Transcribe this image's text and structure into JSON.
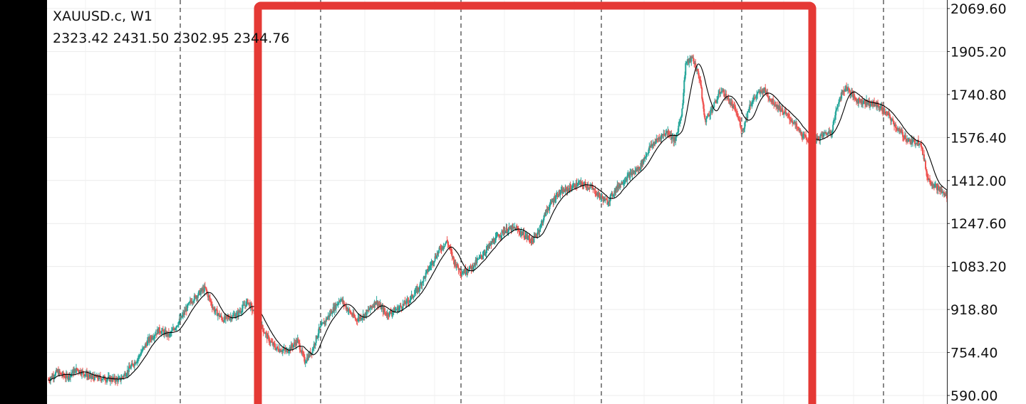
{
  "header": {
    "symbol": "XAUUSD.c",
    "timeframe": "W1",
    "ohlc": "2323.42 2431.50 2302.95 2344.76"
  },
  "chart_data": {
    "type": "candlestick",
    "symbol": "XAUUSD.c",
    "timeframe": "W1",
    "y_ticks": [
      "2069.60",
      "1905.20",
      "1740.80",
      "1576.40",
      "1412.00",
      "1247.60",
      "1083.20",
      "918.80",
      "754.40",
      "590.00"
    ],
    "ylim": [
      590.0,
      2069.6
    ],
    "grid": true,
    "period_separators": "dashed vertical lines",
    "moving_average": "single thin black line",
    "colors": {
      "up": "#26a69a",
      "down": "#ef5350",
      "ma": "#000000",
      "highlight": "#e53935"
    },
    "price_path": [
      [
        0,
        650
      ],
      [
        12,
        680
      ],
      [
        25,
        660
      ],
      [
        40,
        690
      ],
      [
        60,
        660
      ],
      [
        80,
        655
      ],
      [
        100,
        650
      ],
      [
        110,
        680
      ],
      [
        125,
        730
      ],
      [
        140,
        800
      ],
      [
        155,
        840
      ],
      [
        170,
        820
      ],
      [
        185,
        880
      ],
      [
        200,
        950
      ],
      [
        215,
        990
      ],
      [
        220,
        1000
      ],
      [
        232,
        920
      ],
      [
        245,
        880
      ],
      [
        265,
        900
      ],
      [
        280,
        950
      ],
      [
        290,
        900
      ],
      [
        300,
        850
      ],
      [
        310,
        800
      ],
      [
        320,
        770
      ],
      [
        335,
        760
      ],
      [
        350,
        800
      ],
      [
        360,
        720
      ],
      [
        370,
        760
      ],
      [
        380,
        840
      ],
      [
        395,
        900
      ],
      [
        410,
        960
      ],
      [
        420,
        920
      ],
      [
        432,
        880
      ],
      [
        445,
        900
      ],
      [
        460,
        950
      ],
      [
        475,
        900
      ],
      [
        490,
        920
      ],
      [
        505,
        950
      ],
      [
        520,
        1000
      ],
      [
        535,
        1080
      ],
      [
        550,
        1150
      ],
      [
        560,
        1180
      ],
      [
        570,
        1100
      ],
      [
        580,
        1060
      ],
      [
        595,
        1080
      ],
      [
        610,
        1130
      ],
      [
        625,
        1180
      ],
      [
        640,
        1220
      ],
      [
        655,
        1230
      ],
      [
        670,
        1200
      ],
      [
        680,
        1180
      ],
      [
        690,
        1230
      ],
      [
        700,
        1300
      ],
      [
        715,
        1360
      ],
      [
        730,
        1380
      ],
      [
        745,
        1400
      ],
      [
        760,
        1390
      ],
      [
        775,
        1350
      ],
      [
        785,
        1330
      ],
      [
        800,
        1390
      ],
      [
        815,
        1430
      ],
      [
        830,
        1460
      ],
      [
        845,
        1540
      ],
      [
        860,
        1580
      ],
      [
        870,
        1600
      ],
      [
        880,
        1560
      ],
      [
        890,
        1680
      ],
      [
        895,
        1860
      ],
      [
        905,
        1880
      ],
      [
        915,
        1800
      ],
      [
        922,
        1640
      ],
      [
        935,
        1700
      ],
      [
        945,
        1760
      ],
      [
        955,
        1720
      ],
      [
        965,
        1680
      ],
      [
        975,
        1600
      ],
      [
        985,
        1700
      ],
      [
        995,
        1740
      ],
      [
        1005,
        1760
      ],
      [
        1015,
        1720
      ],
      [
        1030,
        1680
      ],
      [
        1045,
        1640
      ],
      [
        1060,
        1580
      ],
      [
        1075,
        1560
      ],
      [
        1090,
        1590
      ],
      [
        1100,
        1600
      ],
      [
        1110,
        1720
      ],
      [
        1120,
        1770
      ],
      [
        1135,
        1720
      ],
      [
        1150,
        1710
      ],
      [
        1165,
        1700
      ],
      [
        1180,
        1660
      ],
      [
        1195,
        1600
      ],
      [
        1210,
        1560
      ],
      [
        1225,
        1560
      ],
      [
        1235,
        1420
      ],
      [
        1250,
        1380
      ],
      [
        1262,
        1350
      ]
    ]
  }
}
